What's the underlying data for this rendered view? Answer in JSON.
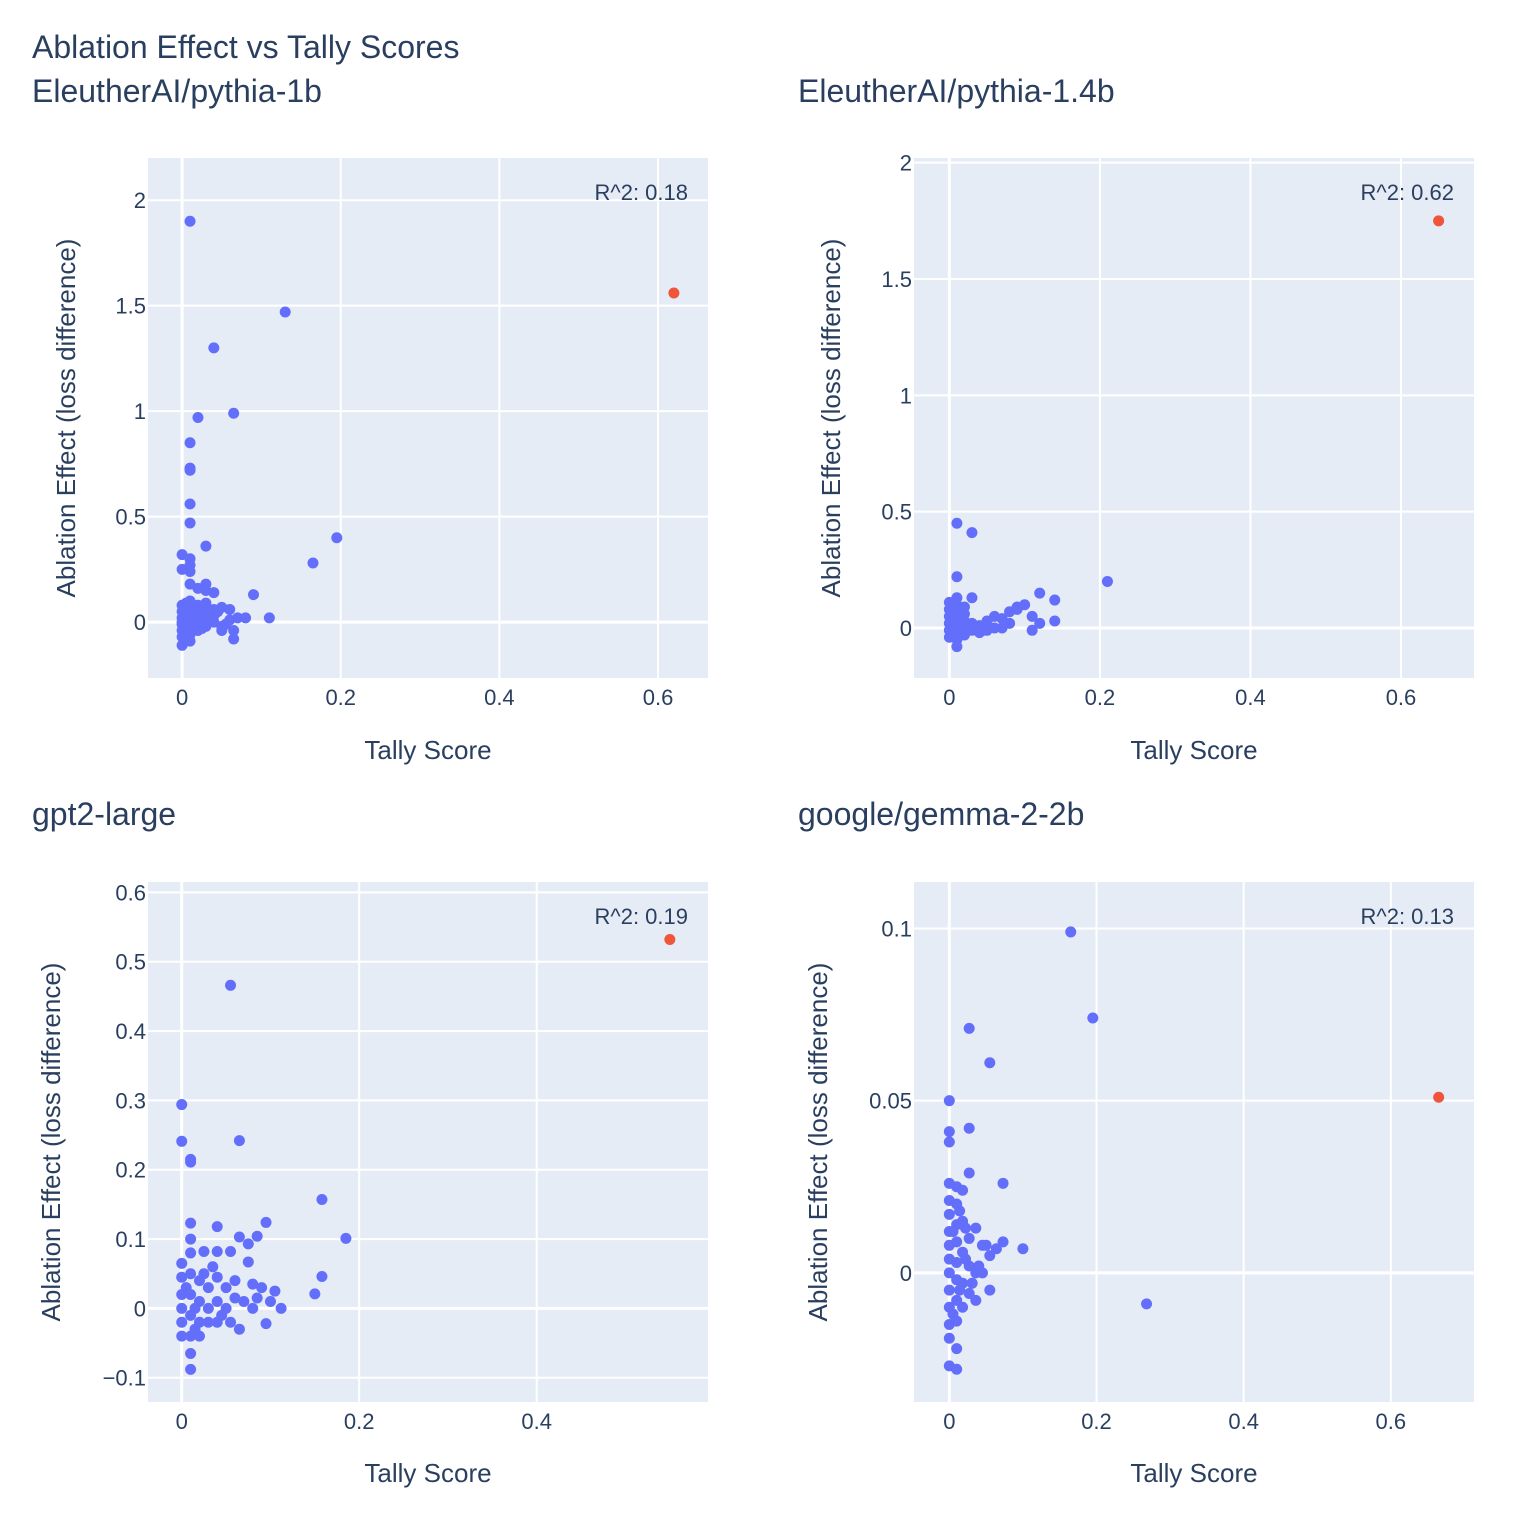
{
  "figure": {
    "title": "Ablation Effect vs Tally Scores",
    "colors": {
      "point": "#636efa",
      "highlight": "#ef553b",
      "plot_bg": "#e5ecf6",
      "grid": "#ffffff",
      "text": "#2a3f5f"
    }
  },
  "chart_data": [
    {
      "type": "scatter",
      "title": "EleutherAI/pythia-1b",
      "xlabel": "Tally Score",
      "ylabel": "Ablation Effect (loss difference)",
      "annotation": "R^2: 0.18",
      "xlim": [
        -0.043,
        0.663
      ],
      "ylim": [
        -0.265,
        2.2
      ],
      "xticks": [
        0,
        0.2,
        0.4,
        0.6
      ],
      "xtick_labels": [
        "0",
        "0.2",
        "0.4",
        "0.6"
      ],
      "yticks": [
        0,
        0.5,
        1,
        1.5,
        2
      ],
      "ytick_labels": [
        "0",
        "0.5",
        "1",
        "1.5",
        "2"
      ],
      "grid": true,
      "highlight": {
        "x": 0.62,
        "y": 1.56
      },
      "points": [
        [
          0.01,
          1.9
        ],
        [
          0.13,
          1.47
        ],
        [
          0.04,
          1.3
        ],
        [
          0.02,
          0.97
        ],
        [
          0.065,
          0.99
        ],
        [
          0.01,
          0.85
        ],
        [
          0.01,
          0.73
        ],
        [
          0.01,
          0.72
        ],
        [
          0.01,
          0.56
        ],
        [
          0.01,
          0.47
        ],
        [
          0.195,
          0.4
        ],
        [
          0.03,
          0.36
        ],
        [
          0.165,
          0.28
        ],
        [
          0.0,
          0.32
        ],
        [
          0.01,
          0.3
        ],
        [
          0.0,
          0.25
        ],
        [
          0.01,
          0.27
        ],
        [
          0.01,
          0.24
        ],
        [
          0.01,
          0.18
        ],
        [
          0.03,
          0.18
        ],
        [
          0.03,
          0.15
        ],
        [
          0.04,
          0.14
        ],
        [
          0.02,
          0.16
        ],
        [
          0.09,
          0.13
        ],
        [
          0.01,
          0.1
        ],
        [
          0.0,
          0.08
        ],
        [
          0.0,
          0.05
        ],
        [
          0.0,
          0.02
        ],
        [
          0.0,
          -0.01
        ],
        [
          0.0,
          -0.04
        ],
        [
          0.0,
          -0.07
        ],
        [
          0.0,
          -0.11
        ],
        [
          0.01,
          0.06
        ],
        [
          0.01,
          0.03
        ],
        [
          0.01,
          0.0
        ],
        [
          0.01,
          -0.03
        ],
        [
          0.01,
          -0.06
        ],
        [
          0.01,
          -0.09
        ],
        [
          0.02,
          0.08
        ],
        [
          0.02,
          0.05
        ],
        [
          0.02,
          0.02
        ],
        [
          0.02,
          -0.01
        ],
        [
          0.02,
          -0.04
        ],
        [
          0.03,
          0.07
        ],
        [
          0.03,
          0.04
        ],
        [
          0.03,
          0.01
        ],
        [
          0.03,
          -0.02
        ],
        [
          0.04,
          0.06
        ],
        [
          0.04,
          0.03
        ],
        [
          0.04,
          0.0
        ],
        [
          0.05,
          0.07
        ],
        [
          0.05,
          -0.02
        ],
        [
          0.05,
          -0.04
        ],
        [
          0.06,
          0.06
        ],
        [
          0.06,
          0.01
        ],
        [
          0.065,
          -0.04
        ],
        [
          0.065,
          -0.08
        ],
        [
          0.07,
          0.02
        ],
        [
          0.08,
          0.02
        ],
        [
          0.11,
          0.02
        ],
        [
          0.005,
          0.09
        ],
        [
          0.015,
          0.04
        ],
        [
          0.025,
          -0.03
        ],
        [
          0.035,
          0.02
        ],
        [
          0.045,
          0.05
        ],
        [
          0.0,
          0.0
        ],
        [
          0.005,
          -0.05
        ],
        [
          0.015,
          -0.02
        ],
        [
          0.055,
          -0.01
        ],
        [
          0.03,
          0.09
        ]
      ]
    },
    {
      "type": "scatter",
      "title": "EleutherAI/pythia-1.4b",
      "xlabel": "Tally Score",
      "ylabel": "Ablation Effect (loss difference)",
      "annotation": "R^2: 0.62",
      "xlim": [
        -0.047,
        0.697
      ],
      "ylim": [
        -0.215,
        2.02
      ],
      "xticks": [
        0,
        0.2,
        0.4,
        0.6
      ],
      "xtick_labels": [
        "0",
        "0.2",
        "0.4",
        "0.6"
      ],
      "yticks": [
        0,
        0.5,
        1,
        1.5,
        2
      ],
      "ytick_labels": [
        "0",
        "0.5",
        "1",
        "1.5",
        "2"
      ],
      "grid": true,
      "highlight": {
        "x": 0.65,
        "y": 1.75
      },
      "points": [
        [
          0.01,
          0.45
        ],
        [
          0.03,
          0.41
        ],
        [
          0.21,
          0.2
        ],
        [
          0.01,
          0.22
        ],
        [
          0.03,
          0.13
        ],
        [
          0.12,
          0.15
        ],
        [
          0.14,
          0.12
        ],
        [
          0.1,
          0.1
        ],
        [
          0.09,
          0.08
        ],
        [
          0.11,
          0.05
        ],
        [
          0.14,
          0.03
        ],
        [
          0.12,
          0.02
        ],
        [
          0.11,
          -0.01
        ],
        [
          0.01,
          0.13
        ],
        [
          0.0,
          0.11
        ],
        [
          0.0,
          0.08
        ],
        [
          0.0,
          0.05
        ],
        [
          0.0,
          0.02
        ],
        [
          0.0,
          -0.01
        ],
        [
          0.0,
          -0.04
        ],
        [
          0.01,
          0.1
        ],
        [
          0.01,
          0.07
        ],
        [
          0.01,
          0.04
        ],
        [
          0.01,
          0.01
        ],
        [
          0.01,
          -0.02
        ],
        [
          0.01,
          -0.05
        ],
        [
          0.01,
          -0.08
        ],
        [
          0.02,
          0.09
        ],
        [
          0.02,
          0.06
        ],
        [
          0.02,
          0.03
        ],
        [
          0.02,
          0.0
        ],
        [
          0.02,
          -0.03
        ],
        [
          0.03,
          0.02
        ],
        [
          0.03,
          -0.01
        ],
        [
          0.04,
          0.01
        ],
        [
          0.04,
          -0.02
        ],
        [
          0.05,
          0.03
        ],
        [
          0.05,
          -0.01
        ],
        [
          0.06,
          0.0
        ],
        [
          0.06,
          0.05
        ],
        [
          0.07,
          0.04
        ],
        [
          0.07,
          0.0
        ],
        [
          0.08,
          0.02
        ],
        [
          0.08,
          0.07
        ],
        [
          0.09,
          0.09
        ],
        [
          0.015,
          -0.03
        ],
        [
          0.025,
          0.01
        ],
        [
          0.035,
          0.0
        ],
        [
          0.005,
          0.06
        ],
        [
          0.045,
          -0.01
        ]
      ]
    },
    {
      "type": "scatter",
      "title": "gpt2-large",
      "xlabel": "Tally Score",
      "ylabel": "Ablation Effect (loss difference)",
      "annotation": "R^2: 0.19",
      "xlim": [
        -0.038,
        0.593
      ],
      "ylim": [
        -0.135,
        0.615
      ],
      "xticks": [
        0,
        0.2,
        0.4
      ],
      "xtick_labels": [
        "0",
        "0.2",
        "0.4"
      ],
      "yticks": [
        -0.1,
        0,
        0.1,
        0.2,
        0.3,
        0.4,
        0.5,
        0.6
      ],
      "ytick_labels": [
        "−0.1",
        "0",
        "0.1",
        "0.2",
        "0.3",
        "0.4",
        "0.5",
        "0.6"
      ],
      "grid": true,
      "highlight": {
        "x": 0.55,
        "y": 0.532
      },
      "points": [
        [
          0.055,
          0.466
        ],
        [
          0.0,
          0.294
        ],
        [
          0.0,
          0.241
        ],
        [
          0.065,
          0.242
        ],
        [
          0.01,
          0.215
        ],
        [
          0.01,
          0.211
        ],
        [
          0.158,
          0.157
        ],
        [
          0.095,
          0.124
        ],
        [
          0.185,
          0.101
        ],
        [
          0.01,
          0.123
        ],
        [
          0.04,
          0.118
        ],
        [
          0.065,
          0.103
        ],
        [
          0.085,
          0.104
        ],
        [
          0.075,
          0.093
        ],
        [
          0.025,
          0.082
        ],
        [
          0.04,
          0.082
        ],
        [
          0.055,
          0.082
        ],
        [
          0.075,
          0.067
        ],
        [
          0.158,
          0.046
        ],
        [
          0.15,
          0.021
        ],
        [
          0.01,
          0.1
        ],
        [
          0.01,
          0.08
        ],
        [
          0.0,
          0.065
        ],
        [
          0.0,
          0.045
        ],
        [
          0.0,
          0.02
        ],
        [
          0.0,
          0.0
        ],
        [
          0.0,
          -0.02
        ],
        [
          0.0,
          -0.04
        ],
        [
          0.01,
          0.05
        ],
        [
          0.01,
          0.02
        ],
        [
          0.01,
          -0.01
        ],
        [
          0.01,
          -0.04
        ],
        [
          0.01,
          -0.065
        ],
        [
          0.01,
          -0.088
        ],
        [
          0.02,
          0.04
        ],
        [
          0.02,
          0.01
        ],
        [
          0.02,
          -0.02
        ],
        [
          0.02,
          -0.04
        ],
        [
          0.03,
          0.03
        ],
        [
          0.03,
          0.0
        ],
        [
          0.03,
          -0.02
        ],
        [
          0.04,
          0.045
        ],
        [
          0.04,
          0.01
        ],
        [
          0.04,
          -0.02
        ],
        [
          0.05,
          0.03
        ],
        [
          0.05,
          0.0
        ],
        [
          0.055,
          -0.02
        ],
        [
          0.06,
          0.04
        ],
        [
          0.065,
          -0.03
        ],
        [
          0.07,
          0.01
        ],
        [
          0.08,
          0.035
        ],
        [
          0.08,
          0.0
        ],
        [
          0.09,
          0.03
        ],
        [
          0.095,
          -0.022
        ],
        [
          0.1,
          0.01
        ],
        [
          0.105,
          0.025
        ],
        [
          0.112,
          0.0
        ],
        [
          0.035,
          0.06
        ],
        [
          0.025,
          0.05
        ],
        [
          0.015,
          0.0
        ],
        [
          0.045,
          -0.01
        ],
        [
          0.06,
          0.015
        ],
        [
          0.085,
          0.015
        ],
        [
          0.005,
          0.03
        ],
        [
          0.015,
          -0.03
        ]
      ]
    },
    {
      "type": "scatter",
      "title": "google/gemma-2-2b",
      "xlabel": "Tally Score",
      "ylabel": "Ablation Effect (loss difference)",
      "annotation": "R^2: 0.13",
      "xlim": [
        -0.048,
        0.713
      ],
      "ylim": [
        -0.0375,
        0.1135
      ],
      "xticks": [
        0,
        0.2,
        0.4,
        0.6
      ],
      "xtick_labels": [
        "0",
        "0.2",
        "0.4",
        "0.6"
      ],
      "yticks": [
        0,
        0.05,
        0.1
      ],
      "ytick_labels": [
        "0",
        "0.05",
        "0.1"
      ],
      "grid": true,
      "highlight": {
        "x": 0.665,
        "y": 0.051
      },
      "points": [
        [
          0.165,
          0.099
        ],
        [
          0.195,
          0.074
        ],
        [
          0.027,
          0.071
        ],
        [
          0.055,
          0.061
        ],
        [
          0.0,
          0.05
        ],
        [
          0.0,
          0.041
        ],
        [
          0.027,
          0.042
        ],
        [
          0.0,
          0.038
        ],
        [
          0.027,
          0.029
        ],
        [
          0.073,
          0.026
        ],
        [
          0.1,
          0.007
        ],
        [
          0.268,
          -0.009
        ],
        [
          0.0,
          0.026
        ],
        [
          0.0,
          0.021
        ],
        [
          0.0,
          0.017
        ],
        [
          0.0,
          0.012
        ],
        [
          0.0,
          0.008
        ],
        [
          0.0,
          0.004
        ],
        [
          0.0,
          0.0
        ],
        [
          0.0,
          -0.005
        ],
        [
          0.0,
          -0.01
        ],
        [
          0.0,
          -0.015
        ],
        [
          0.0,
          -0.019
        ],
        [
          0.0,
          -0.027
        ],
        [
          0.01,
          0.025
        ],
        [
          0.01,
          0.02
        ],
        [
          0.01,
          0.014
        ],
        [
          0.01,
          0.009
        ],
        [
          0.01,
          0.003
        ],
        [
          0.01,
          -0.002
        ],
        [
          0.01,
          -0.008
        ],
        [
          0.01,
          -0.014
        ],
        [
          0.01,
          -0.022
        ],
        [
          0.01,
          -0.028
        ],
        [
          0.018,
          0.024
        ],
        [
          0.018,
          0.015
        ],
        [
          0.018,
          0.006
        ],
        [
          0.018,
          -0.003
        ],
        [
          0.018,
          -0.01
        ],
        [
          0.027,
          0.01
        ],
        [
          0.027,
          0.002
        ],
        [
          0.027,
          -0.006
        ],
        [
          0.036,
          0.013
        ],
        [
          0.036,
          0.0
        ],
        [
          0.036,
          -0.008
        ],
        [
          0.045,
          0.008
        ],
        [
          0.045,
          0.0
        ],
        [
          0.055,
          0.005
        ],
        [
          0.055,
          -0.005
        ],
        [
          0.073,
          0.009
        ],
        [
          0.064,
          0.007
        ],
        [
          0.005,
          0.012
        ],
        [
          0.014,
          -0.005
        ],
        [
          0.022,
          0.004
        ],
        [
          0.031,
          -0.003
        ],
        [
          0.04,
          0.002
        ],
        [
          0.005,
          -0.012
        ],
        [
          0.014,
          0.018
        ],
        [
          0.022,
          0.013
        ],
        [
          0.05,
          0.008
        ]
      ]
    }
  ]
}
